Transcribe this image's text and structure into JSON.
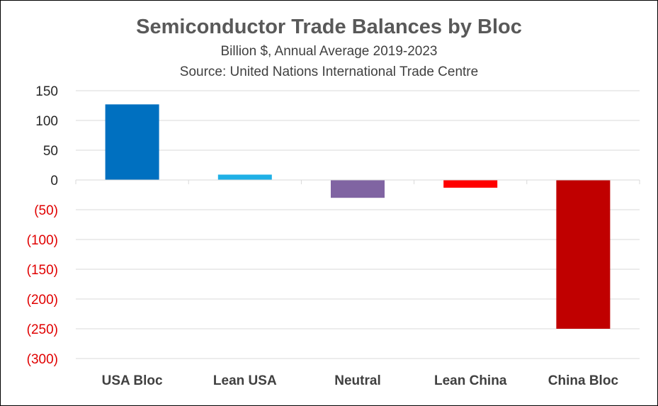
{
  "chart_data": {
    "type": "bar",
    "title": "Semiconductor Trade Balances by Bloc",
    "subtitle": "Billion $, Annual Average 2019-2023",
    "source": "Source:  United Nations International Trade Centre",
    "categories": [
      "USA Bloc",
      "Lean USA",
      "Neutral",
      "Lean China",
      "China Bloc"
    ],
    "values": [
      127,
      9,
      -30,
      -13,
      -250
    ],
    "colors": [
      "#0070C0",
      "#1FB0E6",
      "#8064A2",
      "#FF0000",
      "#C00000"
    ],
    "ylim": [
      -300,
      150
    ],
    "yticks": [
      150,
      100,
      50,
      0,
      -50,
      -100,
      -150,
      -200,
      -250,
      -300
    ],
    "ytick_labels": [
      "150",
      "100",
      "50",
      "0",
      "(50)",
      "(100)",
      "(150)",
      "(200)",
      "(250)",
      "(300)"
    ],
    "ytick_colors": {
      "positive": "#262626",
      "negative": "#E00000"
    },
    "grid": true,
    "xlabel": "",
    "ylabel": ""
  }
}
